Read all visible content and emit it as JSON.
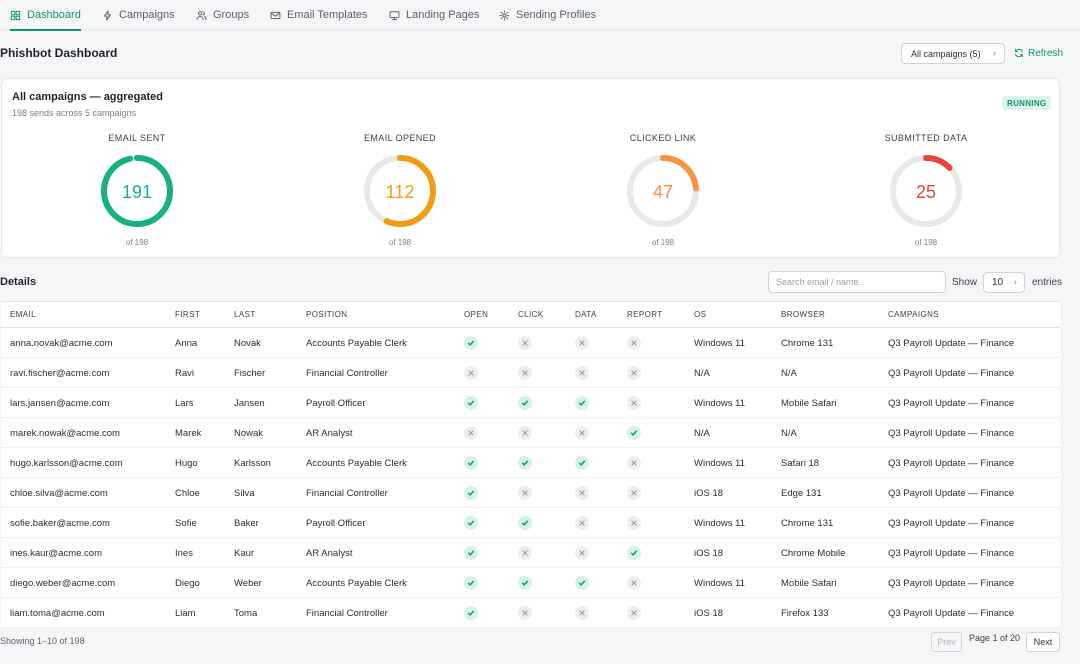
{
  "nav": {
    "tabs": [
      {
        "label": "Dashboard",
        "icon": "grid-icon",
        "active": true
      },
      {
        "label": "Campaigns",
        "icon": "bolt-icon",
        "active": false
      },
      {
        "label": "Groups",
        "icon": "users-icon",
        "active": false
      },
      {
        "label": "Email Templates",
        "icon": "envelope-icon",
        "active": false
      },
      {
        "label": "Landing Pages",
        "icon": "monitor-icon",
        "active": false
      },
      {
        "label": "Sending Profiles",
        "icon": "gear-icon",
        "active": false
      }
    ]
  },
  "header": {
    "title": "Phishbot Dashboard",
    "campaign_filter": "All campaigns (5)",
    "refresh_label": "Refresh"
  },
  "summary": {
    "title": "All campaigns — aggregated",
    "subtitle": "198 sends across 5 campaigns",
    "status": "RUNNING",
    "gauges": [
      {
        "label": "EMAIL SENT",
        "value": 191,
        "total": 198,
        "of_text": "of 198",
        "color": "#17b27a"
      },
      {
        "label": "EMAIL OPENED",
        "value": 112,
        "total": 198,
        "of_text": "of 198",
        "color": "#f39c12"
      },
      {
        "label": "CLICKED LINK",
        "value": 47,
        "total": 198,
        "of_text": "of 198",
        "color": "#f59542"
      },
      {
        "label": "SUBMITTED DATA",
        "value": 25,
        "total": 198,
        "of_text": "of 198",
        "color": "#e8453c"
      }
    ]
  },
  "details": {
    "title": "Details",
    "search_placeholder": "Search email / name..",
    "show_label": "Show",
    "entries_value": "10",
    "entries_label": "entries",
    "columns": [
      "EMAIL",
      "FIRST",
      "LAST",
      "POSITION",
      "OPEN",
      "CLICK",
      "DATA",
      "REPORT",
      "OS",
      "BROWSER",
      "CAMPAIGNS"
    ],
    "rows": [
      {
        "email": "anna.novak@acme.com",
        "first": "Anna",
        "last": "Novak",
        "position": "Accounts Payable Clerk",
        "open": true,
        "click": false,
        "data": false,
        "report": false,
        "os": "Windows 11",
        "browser": "Chrome 131",
        "campaign": "Q3 Payroll Update — Finance"
      },
      {
        "email": "ravi.fischer@acme.com",
        "first": "Ravi",
        "last": "Fischer",
        "position": "Financial Controller",
        "open": false,
        "click": false,
        "data": false,
        "report": false,
        "os": "N/A",
        "browser": "N/A",
        "campaign": "Q3 Payroll Update — Finance"
      },
      {
        "email": "lars.jansen@acme.com",
        "first": "Lars",
        "last": "Jansen",
        "position": "Payroll Officer",
        "open": true,
        "click": true,
        "data": true,
        "report": false,
        "os": "Windows 11",
        "browser": "Mobile Safari",
        "campaign": "Q3 Payroll Update — Finance"
      },
      {
        "email": "marek.nowak@acme.com",
        "first": "Marek",
        "last": "Nowak",
        "position": "AR Analyst",
        "open": false,
        "click": false,
        "data": false,
        "report": true,
        "os": "N/A",
        "browser": "N/A",
        "campaign": "Q3 Payroll Update — Finance"
      },
      {
        "email": "hugo.karlsson@acme.com",
        "first": "Hugo",
        "last": "Karlsson",
        "position": "Accounts Payable Clerk",
        "open": true,
        "click": true,
        "data": true,
        "report": false,
        "os": "Windows 11",
        "browser": "Safari 18",
        "campaign": "Q3 Payroll Update — Finance"
      },
      {
        "email": "chloe.silva@acme.com",
        "first": "Chloe",
        "last": "Silva",
        "position": "Financial Controller",
        "open": true,
        "click": false,
        "data": false,
        "report": false,
        "os": "iOS 18",
        "browser": "Edge 131",
        "campaign": "Q3 Payroll Update — Finance"
      },
      {
        "email": "sofie.baker@acme.com",
        "first": "Sofie",
        "last": "Baker",
        "position": "Payroll Officer",
        "open": true,
        "click": true,
        "data": false,
        "report": false,
        "os": "Windows 11",
        "browser": "Chrome 131",
        "campaign": "Q3 Payroll Update — Finance"
      },
      {
        "email": "ines.kaur@acme.com",
        "first": "Ines",
        "last": "Kaur",
        "position": "AR Analyst",
        "open": true,
        "click": false,
        "data": false,
        "report": true,
        "os": "iOS 18",
        "browser": "Chrome Mobile",
        "campaign": "Q3 Payroll Update — Finance"
      },
      {
        "email": "diego.weber@acme.com",
        "first": "Diego",
        "last": "Weber",
        "position": "Accounts Payable Clerk",
        "open": true,
        "click": true,
        "data": true,
        "report": false,
        "os": "Windows 11",
        "browser": "Mobile Safari",
        "campaign": "Q3 Payroll Update — Finance"
      },
      {
        "email": "liam.toma@acme.com",
        "first": "Liam",
        "last": "Toma",
        "position": "Financial Controller",
        "open": true,
        "click": false,
        "data": false,
        "report": false,
        "os": "iOS 18",
        "browser": "Firefox 133",
        "campaign": "Q3 Payroll Update — Finance"
      }
    ]
  },
  "pagination": {
    "showing": "Showing 1–10 of 198",
    "prev_label": "Prev",
    "page_info": "Page 1 of 20",
    "next_label": "Next"
  }
}
